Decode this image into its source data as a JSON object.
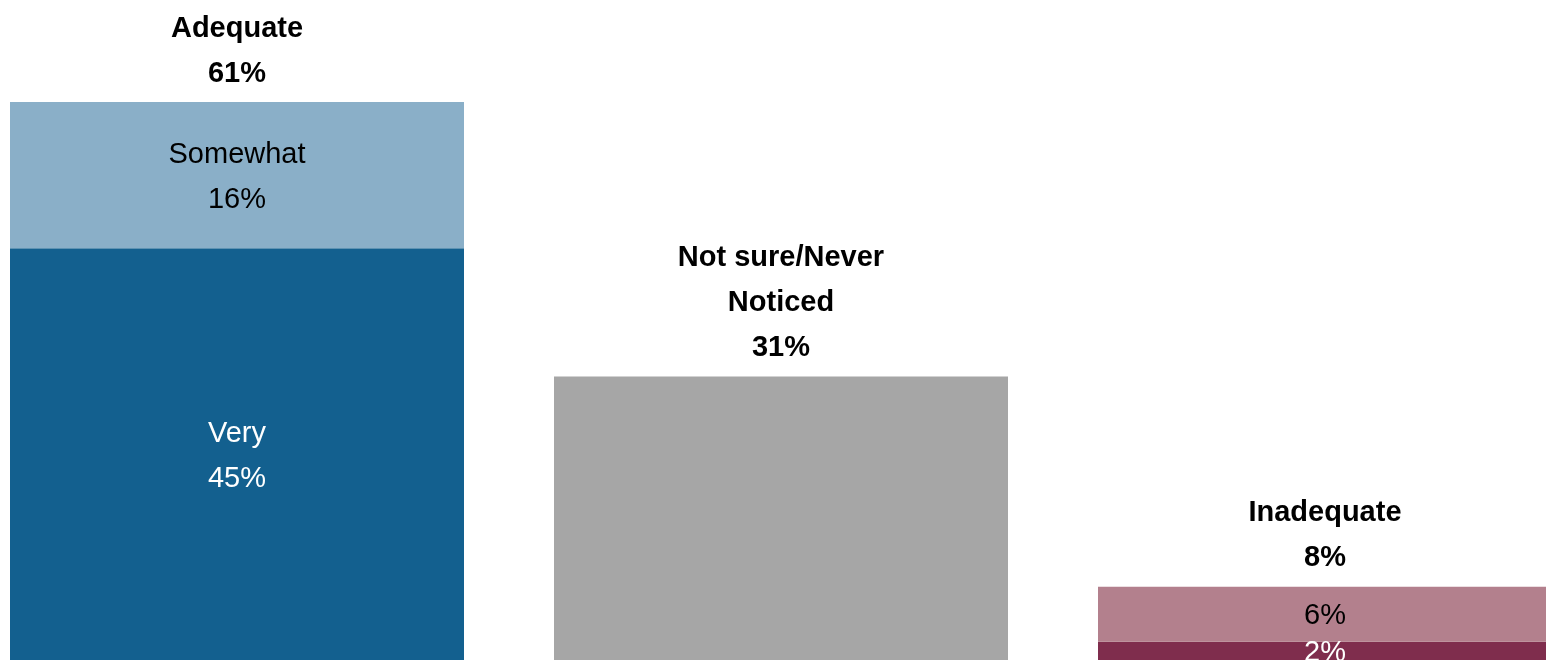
{
  "chart_data": {
    "type": "bar",
    "stacked": true,
    "categories": [
      "Adequate",
      "Not sure/Never Noticed",
      "Inadequate"
    ],
    "series": [
      {
        "values": [
          45,
          31,
          2
        ],
        "colors": [
          "#13608f",
          "#a6a6a6",
          "#7f2d4d"
        ],
        "value_labels": [
          "Very\n45%",
          null,
          "2%"
        ]
      },
      {
        "values": [
          16,
          null,
          6
        ],
        "colors": [
          "#8aafc8",
          null,
          "#b3808d"
        ],
        "value_labels": [
          "Somewhat\n16%",
          null,
          "6%"
        ]
      }
    ],
    "totals": [
      "61%",
      "31%",
      "8%"
    ]
  }
}
